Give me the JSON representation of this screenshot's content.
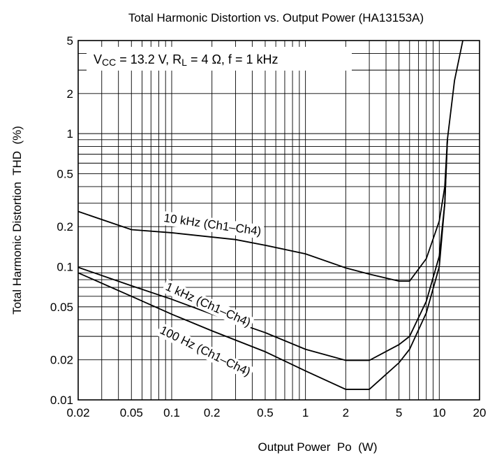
{
  "chart_data": {
    "type": "line",
    "title": "Total Harmonic Distortion vs. Output Power (HA13153A)",
    "xlabel": "Output Power  Po  (W)",
    "ylabel": "Total Harmonic Distortion  THD  (%)",
    "x_scale": "log",
    "y_scale": "log",
    "xlim": [
      0.02,
      20
    ],
    "ylim": [
      0.01,
      5
    ],
    "grid": true,
    "x_ticks": [
      0.02,
      0.05,
      0.1,
      0.2,
      0.5,
      1,
      2,
      5,
      10,
      20
    ],
    "x_tick_labels": [
      "0.02",
      "0.05",
      "0.1",
      "0.2",
      "0.5",
      "1",
      "2",
      "5",
      "10",
      "20"
    ],
    "y_ticks": [
      0.01,
      0.02,
      0.05,
      0.1,
      0.2,
      0.5,
      1,
      2,
      5
    ],
    "y_tick_labels": [
      "0.01",
      "0.02",
      "0.05",
      "0.1",
      "0.2",
      "0.5",
      "1",
      "2",
      "5"
    ],
    "condition": {
      "vcc_pre": "V",
      "vcc_sub": "CC",
      "vcc_post": " = 13.2 V, R",
      "rl_sub": "L",
      "rl_post": " = 4 Ω, f = 1 kHz"
    },
    "series": [
      {
        "name": "10 kHz (Ch1–Ch4)",
        "points": [
          [
            0.02,
            0.26
          ],
          [
            0.05,
            0.19
          ],
          [
            0.1,
            0.18
          ],
          [
            0.3,
            0.16
          ],
          [
            0.5,
            0.145
          ],
          [
            1,
            0.125
          ],
          [
            2,
            0.098
          ],
          [
            3,
            0.088
          ],
          [
            5,
            0.078
          ],
          [
            6,
            0.078
          ],
          [
            8,
            0.115
          ],
          [
            10,
            0.22
          ],
          [
            11,
            0.4
          ],
          [
            11.5,
            0.9
          ],
          [
            13,
            2.5
          ],
          [
            15,
            5
          ]
        ]
      },
      {
        "name": "1 kHz (Ch1–Ch4)",
        "points": [
          [
            0.02,
            0.099
          ],
          [
            0.05,
            0.072
          ],
          [
            0.1,
            0.057
          ],
          [
            0.2,
            0.044
          ],
          [
            0.5,
            0.032
          ],
          [
            1,
            0.024
          ],
          [
            2,
            0.0198
          ],
          [
            3,
            0.0198
          ],
          [
            5,
            0.026
          ],
          [
            6,
            0.03
          ],
          [
            8,
            0.055
          ],
          [
            10,
            0.12
          ],
          [
            11,
            0.3
          ],
          [
            11.5,
            0.9
          ]
        ]
      },
      {
        "name": "100 Hz (Ch1–Ch4)",
        "points": [
          [
            0.02,
            0.09
          ],
          [
            0.05,
            0.06
          ],
          [
            0.1,
            0.044
          ],
          [
            0.2,
            0.033
          ],
          [
            0.5,
            0.023
          ],
          [
            1,
            0.0165
          ],
          [
            2,
            0.012
          ],
          [
            3,
            0.012
          ],
          [
            5,
            0.019
          ],
          [
            6,
            0.024
          ],
          [
            8,
            0.045
          ],
          [
            10,
            0.1
          ],
          [
            11,
            0.3
          ],
          [
            11.5,
            0.9
          ]
        ]
      }
    ]
  }
}
